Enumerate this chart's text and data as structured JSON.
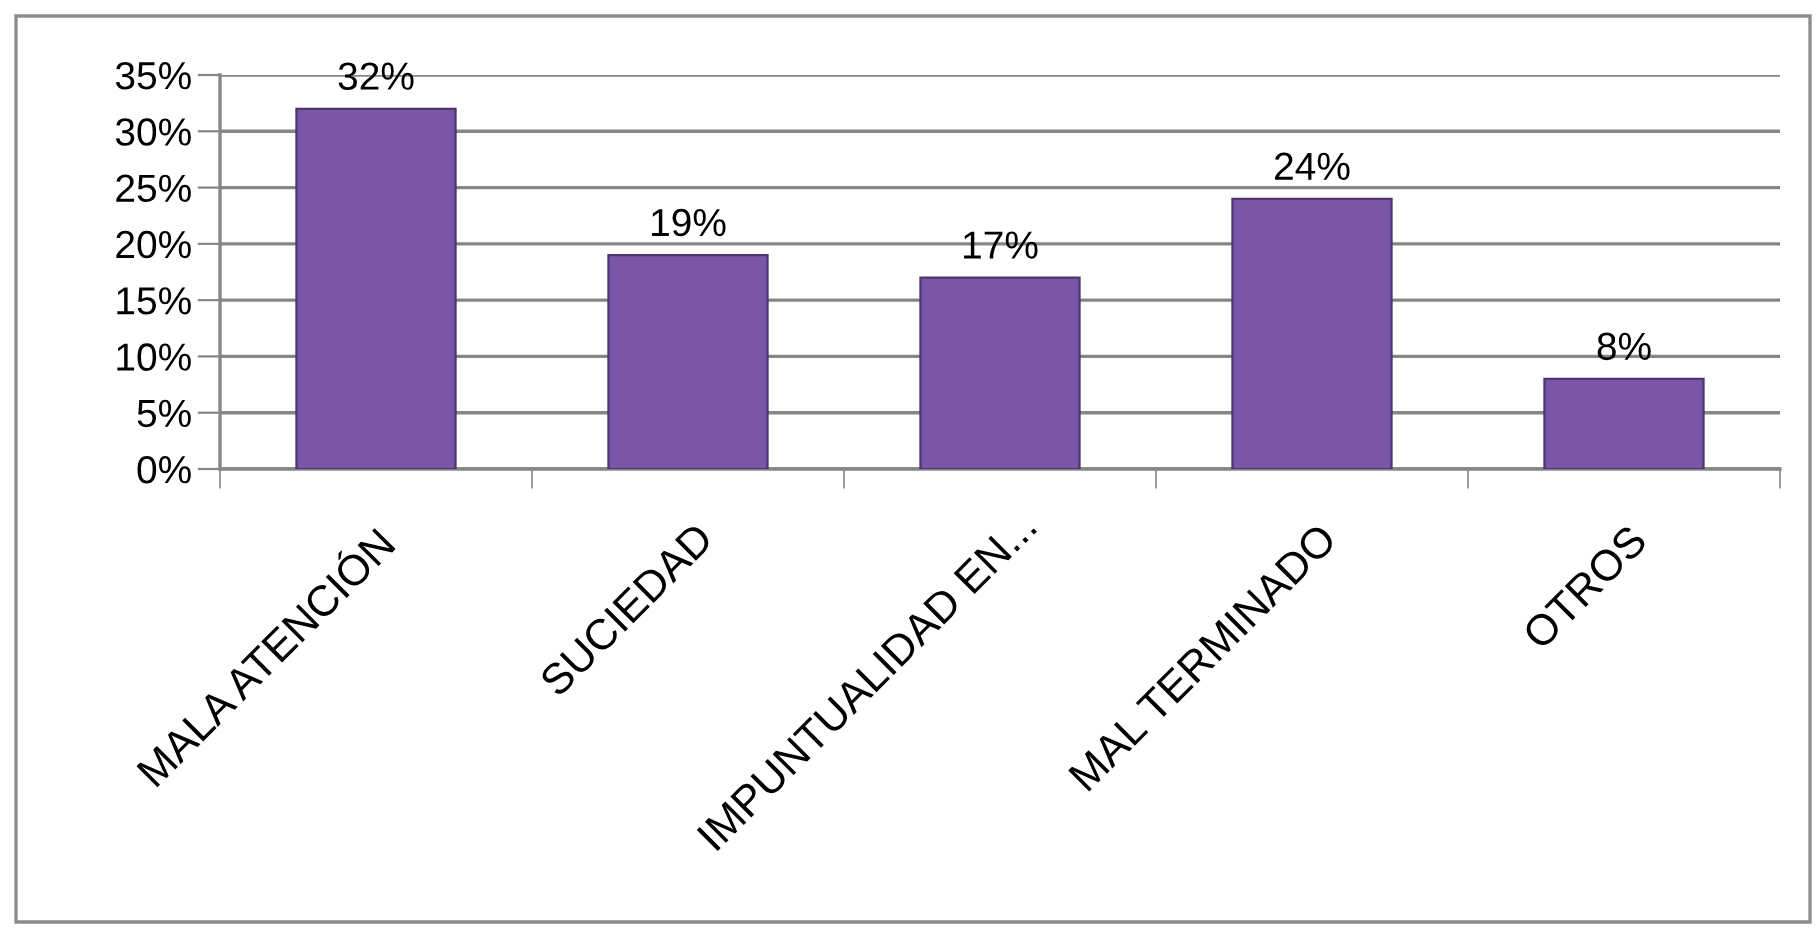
{
  "chart_data": {
    "type": "bar",
    "categories": [
      "MALA ATENCIÓN",
      "SUCIEDAD",
      "IMPUNTUALIDAD EN...",
      "MAL TERMINADO",
      "OTROS"
    ],
    "values": [
      32,
      19,
      17,
      24,
      8
    ],
    "value_labels": [
      "32%",
      "19%",
      "17%",
      "24%",
      "8%"
    ],
    "color": "#7b55a8",
    "ylim": [
      0,
      35
    ],
    "yticks": [
      {
        "value": 0,
        "label": "0%"
      },
      {
        "value": 5,
        "label": "5%"
      },
      {
        "value": 10,
        "label": "10%"
      },
      {
        "value": 15,
        "label": "15%"
      },
      {
        "value": 20,
        "label": "20%"
      },
      {
        "value": 25,
        "label": "25%"
      },
      {
        "value": 30,
        "label": "30%"
      },
      {
        "value": 35,
        "label": "35%"
      }
    ],
    "grid": "y"
  }
}
